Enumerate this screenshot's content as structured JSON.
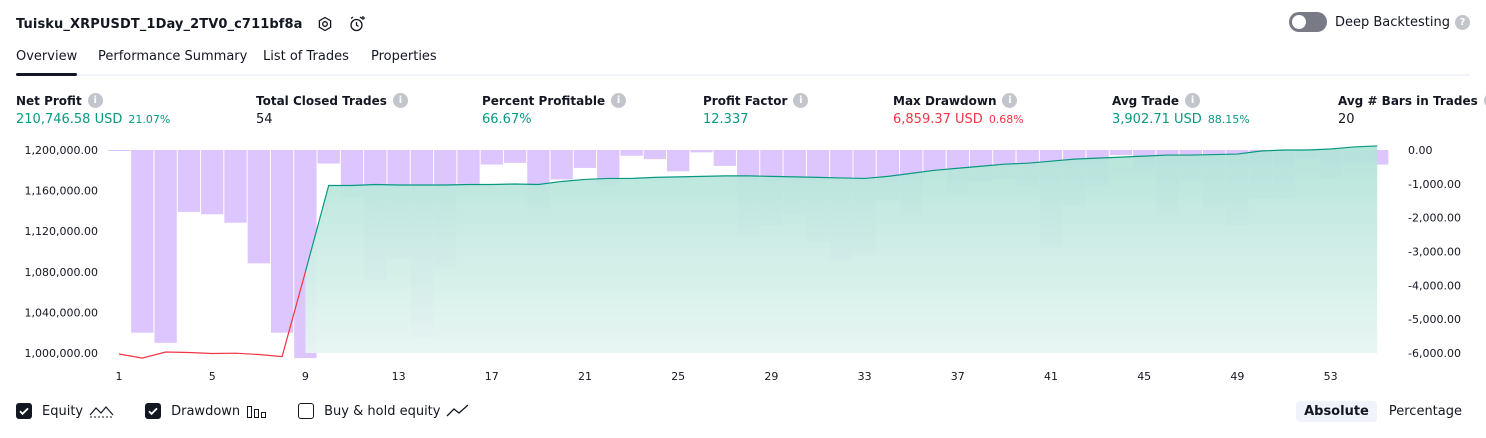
{
  "header": {
    "title": "Tuisku_XRPUSDT_1Day_2TV0_c711bf8a",
    "settings_icon": "gear-icon",
    "alert_icon": "alarm-add-icon"
  },
  "deep_backtesting": {
    "label": "Deep Backtesting",
    "enabled": false
  },
  "tabs": [
    {
      "label": "Overview",
      "active": true
    },
    {
      "label": "Performance Summary",
      "active": false
    },
    {
      "label": "List of Trades",
      "active": false
    },
    {
      "label": "Properties",
      "active": false
    }
  ],
  "stats": [
    {
      "label": "Net Profit",
      "value": "210,746.58 USD",
      "pct": "21.07%",
      "color": "#089981"
    },
    {
      "label": "Total Closed Trades",
      "value": "54",
      "pct": "",
      "color": "#131722"
    },
    {
      "label": "Percent Profitable",
      "value": "66.67%",
      "pct": "",
      "color": "#089981"
    },
    {
      "label": "Profit Factor",
      "value": "12.337",
      "pct": "",
      "color": "#089981"
    },
    {
      "label": "Max Drawdown",
      "value": "6,859.37 USD",
      "pct": "0.68%",
      "color": "#f23645"
    },
    {
      "label": "Avg Trade",
      "value": "3,902.71 USD",
      "pct": "88.15%",
      "color": "#089981"
    },
    {
      "label": "Avg # Bars in Trades",
      "value": "20",
      "pct": "",
      "color": "#131722"
    }
  ],
  "chart_data": {
    "type": "line+bar",
    "x_ticks": [
      "1",
      "5",
      "9",
      "13",
      "17",
      "21",
      "25",
      "29",
      "33",
      "37",
      "41",
      "45",
      "49",
      "53"
    ],
    "x_range": [
      1,
      55
    ],
    "left_axis": {
      "ticks": [
        "1,200,000.00",
        "1,160,000.00",
        "1,120,000.00",
        "1,080,000.00",
        "1,040,000.00",
        "1,000,000.00"
      ],
      "range": [
        1000000,
        1200000
      ]
    },
    "right_axis": {
      "ticks": [
        "0.00",
        "-1,000.00",
        "-2,000.00",
        "-3,000.00",
        "-4,000.00",
        "-5,000.00",
        "-6,000.00"
      ],
      "range": [
        -6000,
        0
      ]
    },
    "series": [
      {
        "name": "Equity",
        "kind": "line",
        "colors": {
          "loss": "#f23645",
          "gain": "#089981"
        },
        "values": [
          999000,
          995000,
          1001000,
          1000500,
          999500,
          999800,
          998500,
          996500,
          1080000,
          1165000,
          1165000,
          1166000,
          1165500,
          1165500,
          1165500,
          1166000,
          1166000,
          1166500,
          1166000,
          1169000,
          1171000,
          1172000,
          1172000,
          1173000,
          1173500,
          1174000,
          1174500,
          1174500,
          1174000,
          1173500,
          1173000,
          1172500,
          1172000,
          1174000,
          1177000,
          1180000,
          1182000,
          1184000,
          1186000,
          1187000,
          1189000,
          1191000,
          1192000,
          1193000,
          1194000,
          1195000,
          1195000,
          1195500,
          1196000,
          1199000,
          1200000,
          1200000,
          1201000,
          1203000,
          1204000
        ]
      },
      {
        "name": "Drawdown",
        "kind": "bar",
        "color": "#c79efb",
        "values": [
          0,
          -5400,
          -5700,
          -1830,
          -1900,
          -2150,
          -3350,
          -5400,
          -6150,
          -400,
          -1400,
          -3830,
          -3200,
          -5530,
          -3530,
          -1000,
          -430,
          -380,
          -1730,
          -870,
          -530,
          -1070,
          -170,
          -270,
          -630,
          -70,
          -470,
          -2530,
          -2230,
          -1870,
          -2730,
          -3230,
          -3070,
          -1470,
          -1930,
          -630,
          -1330,
          -930,
          -830,
          -1070,
          -2870,
          -1630,
          -1070,
          -150,
          -570,
          -1930,
          -870,
          -1730,
          -2230,
          -1430,
          -1430,
          -230,
          -830,
          -430,
          -430
        ]
      }
    ]
  },
  "legend": [
    {
      "label": "Equity",
      "checked": true,
      "icon": "equity-line-icon"
    },
    {
      "label": "Drawdown",
      "checked": true,
      "icon": "drawdown-bars-icon"
    },
    {
      "label": "Buy & hold equity",
      "checked": false,
      "icon": "buy-hold-line-icon"
    }
  ],
  "view_mode": {
    "options": [
      "Absolute",
      "Percentage"
    ],
    "selected": "Absolute"
  }
}
